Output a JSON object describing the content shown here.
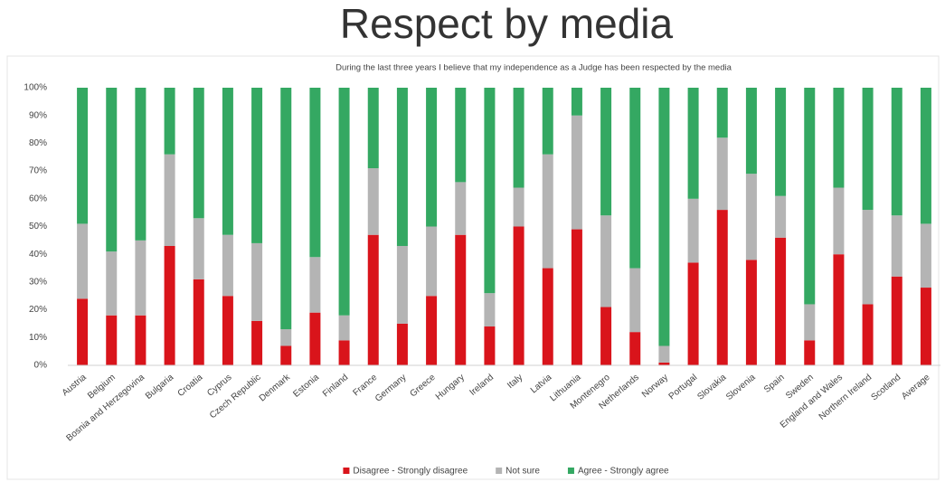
{
  "chart_data": {
    "type": "stacked_bar",
    "title": "Respect by media",
    "subtitle": "During the last three years I believe that my independence as a Judge has been respected by the media",
    "categories": [
      "Austria",
      "Belgium",
      "Bosnia and Herzegovina",
      "Bulgaria",
      "Croatia",
      "Cyprus",
      "Czech Republic",
      "Denmark",
      "Estonia",
      "Finland",
      "France",
      "Germany",
      "Greece",
      "Hungary",
      "Ireland",
      "Italy",
      "Latvia",
      "Lithuania",
      "Montenegro",
      "Netherlands",
      "Norway",
      "Portugal",
      "Slovakia",
      "Slovenia",
      "Spain",
      "Sweden",
      "England and Wales",
      "Northern Ireland",
      "Scotland",
      "Average"
    ],
    "series": [
      {
        "name": "Disagree - Strongly disagree",
        "color": "#d9141b",
        "values": [
          24,
          18,
          18,
          43,
          31,
          25,
          16,
          7,
          19,
          9,
          47,
          15,
          25,
          47,
          14,
          50,
          35,
          49,
          21,
          12,
          1,
          37,
          56,
          38,
          46,
          9,
          40,
          22,
          32,
          28
        ]
      },
      {
        "name": "Not sure",
        "color": "#b4b4b4",
        "values": [
          27,
          23,
          27,
          33,
          22,
          22,
          28,
          6,
          20,
          9,
          24,
          28,
          25,
          19,
          12,
          14,
          41,
          41,
          33,
          23,
          6,
          23,
          26,
          31,
          15,
          13,
          24,
          34,
          22,
          23
        ]
      },
      {
        "name": "Agree - Strongly agree",
        "color": "#34a862",
        "values": [
          49,
          59,
          55,
          24,
          47,
          53,
          56,
          87,
          61,
          82,
          29,
          57,
          50,
          34,
          74,
          36,
          24,
          10,
          46,
          65,
          93,
          40,
          18,
          31,
          39,
          78,
          36,
          44,
          46,
          49
        ]
      }
    ],
    "ylim": [
      0,
      100
    ],
    "yticks": [
      {
        "value": 0,
        "label": "0%"
      },
      {
        "value": 10,
        "label": "10%"
      },
      {
        "value": 20,
        "label": "20%"
      },
      {
        "value": 30,
        "label": "30%"
      },
      {
        "value": 40,
        "label": "40%"
      },
      {
        "value": 50,
        "label": "50%"
      },
      {
        "value": 60,
        "label": "60%"
      },
      {
        "value": 70,
        "label": "70%"
      },
      {
        "value": 80,
        "label": "80%"
      },
      {
        "value": 90,
        "label": "90%"
      },
      {
        "value": 100,
        "label": "100%"
      }
    ],
    "legend": "bottom"
  }
}
